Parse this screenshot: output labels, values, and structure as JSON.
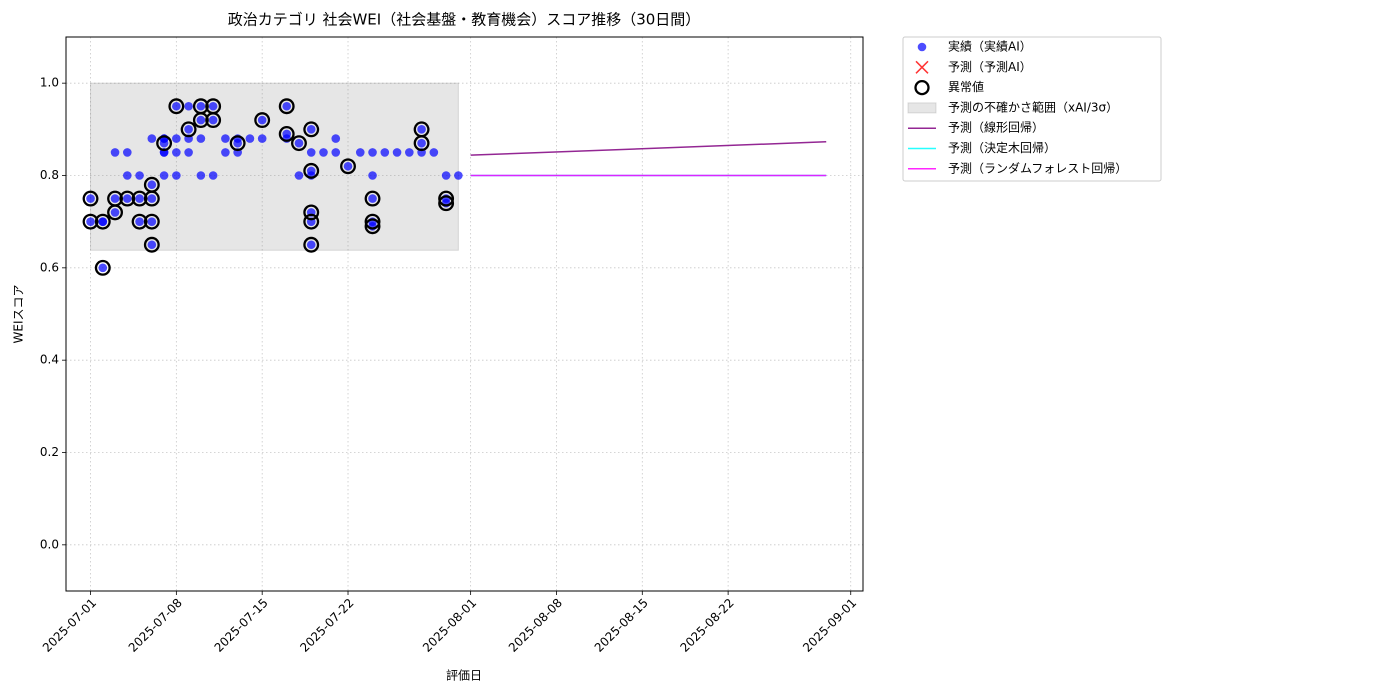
{
  "chart_data": {
    "type": "scatter",
    "title": "政治カテゴリ 社会WEI（社会基盤・教育機会）スコア推移（30日間）",
    "xlabel": "評価日",
    "ylabel": "WEIスコア",
    "xlim": [
      "2025-06-29",
      "2025-09-02"
    ],
    "ylim": [
      -0.1,
      1.1
    ],
    "xticks": [
      "2025-07-01",
      "2025-07-08",
      "2025-07-15",
      "2025-07-22",
      "2025-08-01",
      "2025-08-08",
      "2025-08-15",
      "2025-08-22",
      "2025-09-01"
    ],
    "yticks": [
      {
        "value": 0,
        "label": "0.0"
      },
      0.2,
      0.4,
      0.6,
      0.8,
      {
        "value": 1,
        "label": "1.0"
      }
    ],
    "grid": true,
    "legend": "outside-right",
    "series": [
      {
        "name": "実績（実績AI）",
        "type": "scatter",
        "color": "#0000ff",
        "x": [
          "2025-07-01",
          "2025-07-01",
          "2025-07-02",
          "2025-07-02",
          "2025-07-02",
          "2025-07-03",
          "2025-07-03",
          "2025-07-03",
          "2025-07-04",
          "2025-07-04",
          "2025-07-04",
          "2025-07-05",
          "2025-07-05",
          "2025-07-05",
          "2025-07-06",
          "2025-07-06",
          "2025-07-06",
          "2025-07-06",
          "2025-07-06",
          "2025-07-07",
          "2025-07-07",
          "2025-07-07",
          "2025-07-07",
          "2025-07-07",
          "2025-07-07",
          "2025-07-08",
          "2025-07-08",
          "2025-07-08",
          "2025-07-08",
          "2025-07-09",
          "2025-07-09",
          "2025-07-09",
          "2025-07-09",
          "2025-07-10",
          "2025-07-10",
          "2025-07-10",
          "2025-07-10",
          "2025-07-11",
          "2025-07-11",
          "2025-07-11",
          "2025-07-12",
          "2025-07-12",
          "2025-07-13",
          "2025-07-13",
          "2025-07-13",
          "2025-07-14",
          "2025-07-15",
          "2025-07-15",
          "2025-07-17",
          "2025-07-17",
          "2025-07-17",
          "2025-07-18",
          "2025-07-18",
          "2025-07-19",
          "2025-07-19",
          "2025-07-19",
          "2025-07-19",
          "2025-07-19",
          "2025-07-19",
          "2025-07-19",
          "2025-07-20",
          "2025-07-21",
          "2025-07-21",
          "2025-07-22",
          "2025-07-23",
          "2025-07-24",
          "2025-07-24",
          "2025-07-24",
          "2025-07-24",
          "2025-07-24",
          "2025-07-25",
          "2025-07-26",
          "2025-07-27",
          "2025-07-28",
          "2025-07-28",
          "2025-07-28",
          "2025-07-29",
          "2025-07-30",
          "2025-07-30",
          "2025-07-30",
          "2025-07-31"
        ],
        "values": [
          0.75,
          0.7,
          0.7,
          0.7,
          0.6,
          0.85,
          0.75,
          0.72,
          0.8,
          0.75,
          0.85,
          0.8,
          0.75,
          0.7,
          0.7,
          0.75,
          0.65,
          0.88,
          0.78,
          0.87,
          0.85,
          0.88,
          0.8,
          0.85,
          0.88,
          0.8,
          0.85,
          0.95,
          0.88,
          0.85,
          0.9,
          0.95,
          0.88,
          0.92,
          0.95,
          0.88,
          0.8,
          0.95,
          0.92,
          0.8,
          0.88,
          0.85,
          0.88,
          0.85,
          0.87,
          0.88,
          0.92,
          0.88,
          0.88,
          0.95,
          0.89,
          0.87,
          0.8,
          0.72,
          0.7,
          0.65,
          0.81,
          0.9,
          0.85,
          0.8,
          0.85,
          0.88,
          0.85,
          0.82,
          0.85,
          0.75,
          0.7,
          0.69,
          0.8,
          0.85,
          0.85,
          0.85,
          0.85,
          0.9,
          0.87,
          0.85,
          0.85,
          0.75,
          0.74,
          0.8,
          0.8
        ]
      },
      {
        "name": "予測（予測AI）",
        "type": "cross",
        "color": "#ff0000",
        "x": [],
        "values": []
      },
      {
        "name": "異常値",
        "type": "anomaly",
        "color": "#000000",
        "x": [
          "2025-07-01",
          "2025-07-01",
          "2025-07-02",
          "2025-07-02",
          "2025-07-03",
          "2025-07-03",
          "2025-07-04",
          "2025-07-05",
          "2025-07-05",
          "2025-07-06",
          "2025-07-06",
          "2025-07-06",
          "2025-07-06",
          "2025-07-07",
          "2025-07-08",
          "2025-07-09",
          "2025-07-10",
          "2025-07-10",
          "2025-07-11",
          "2025-07-11",
          "2025-07-13",
          "2025-07-15",
          "2025-07-17",
          "2025-07-17",
          "2025-07-18",
          "2025-07-19",
          "2025-07-19",
          "2025-07-19",
          "2025-07-19",
          "2025-07-19",
          "2025-07-22",
          "2025-07-24",
          "2025-07-24",
          "2025-07-24",
          "2025-07-28",
          "2025-07-28",
          "2025-07-30",
          "2025-07-30"
        ],
        "values": [
          0.75,
          0.7,
          0.7,
          0.6,
          0.75,
          0.72,
          0.75,
          0.75,
          0.7,
          0.7,
          0.75,
          0.65,
          0.78,
          0.87,
          0.95,
          0.9,
          0.92,
          0.95,
          0.95,
          0.92,
          0.87,
          0.92,
          0.95,
          0.89,
          0.87,
          0.72,
          0.7,
          0.65,
          0.81,
          0.9,
          0.82,
          0.75,
          0.7,
          0.69,
          0.9,
          0.87,
          0.75,
          0.74
        ]
      },
      {
        "name": "予測の不確かさ範囲（xAI/3σ）",
        "type": "band",
        "color": "#808080",
        "x": [
          "2025-07-01",
          "2025-07-31"
        ],
        "lower": [
          0.638,
          0.638
        ],
        "upper": [
          1.0,
          1.0
        ]
      },
      {
        "name": "予測（線形回帰）",
        "type": "line",
        "color": "#800080",
        "x": [
          "2025-08-01",
          "2025-08-30"
        ],
        "values": [
          0.844,
          0.873
        ]
      },
      {
        "name": "予測（決定木回帰）",
        "type": "line",
        "color": "#00ffff",
        "x": [
          "2025-08-01",
          "2025-08-30"
        ],
        "values": [
          0.8,
          0.8
        ]
      },
      {
        "name": "予測（ランダムフォレスト回帰）",
        "type": "line",
        "color": "#ff00ff",
        "x": [
          "2025-08-01",
          "2025-08-30"
        ],
        "values": [
          0.8,
          0.8
        ]
      }
    ]
  }
}
